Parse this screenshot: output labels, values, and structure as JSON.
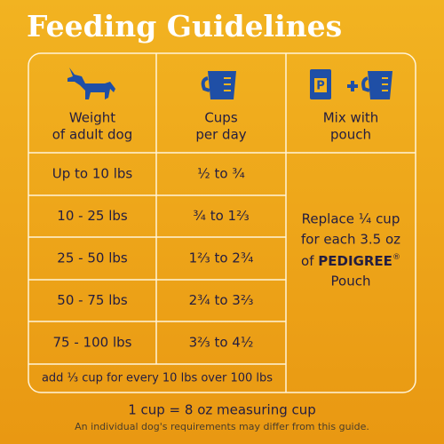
{
  "title": "Feeding Guidelines",
  "table": {
    "headers": [
      [
        "Weight",
        "of adult dog"
      ],
      [
        "Cups",
        "per day"
      ],
      [
        "Mix with",
        "pouch"
      ]
    ],
    "pouch_icon_letter": "P",
    "rows": [
      [
        "Up to 10 lbs",
        "½  to  ¾"
      ],
      [
        "10 - 25 lbs",
        "¾  to  1⅔"
      ],
      [
        "25 - 50 lbs",
        "1⅔  to  2¾"
      ],
      [
        "50 - 75 lbs",
        "2¾  to  3⅔"
      ],
      [
        "75 - 100 lbs",
        "3⅔  to  4½"
      ]
    ],
    "note": "add ⅓ cup for every 10 lbs over 100 lbs",
    "mix": {
      "line1": "Replace ¼ cup",
      "line2": "for each 3.5 oz",
      "of": "of",
      "brand": "PEDIGREE",
      "mark": "®",
      "line4": "Pouch"
    }
  },
  "footer": {
    "measure": "1 cup = 8 oz measuring cup",
    "disclaimer": "An individual dog's requirements may differ from this guide."
  }
}
